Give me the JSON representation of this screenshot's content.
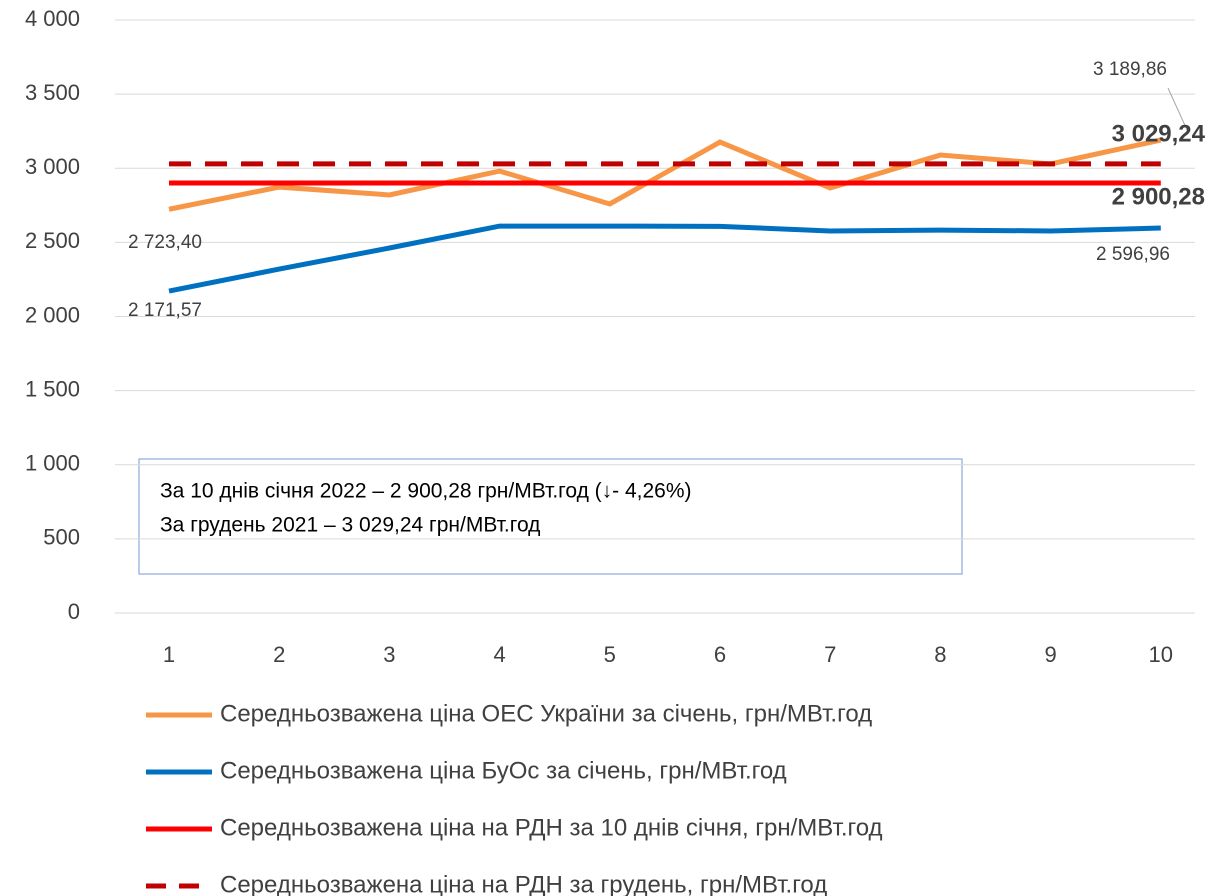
{
  "chart_data": {
    "type": "line",
    "categories": [
      "1",
      "2",
      "3",
      "4",
      "5",
      "6",
      "7",
      "8",
      "9",
      "10"
    ],
    "series": [
      {
        "name": "Середньозважена ціна ОЕС України за січень, грн/МВт.год",
        "color": "#f79646",
        "values": [
          2723.4,
          2873,
          2820,
          2981,
          2759,
          3177,
          2867,
          3089,
          3029,
          3189.86
        ],
        "value_labels": [
          "2 723,40",
          null,
          null,
          null,
          null,
          null,
          null,
          null,
          null,
          "3 189,86"
        ]
      },
      {
        "name": "Середньозважена ціна БуОс за січень, грн/МВт.год",
        "color": "#0070c0",
        "values": [
          2171.57,
          2320,
          2462,
          2610,
          2610,
          2608,
          2577,
          2583,
          2577,
          2596.96
        ],
        "value_labels": [
          "2 171,57",
          null,
          null,
          null,
          null,
          null,
          null,
          null,
          null,
          "2 596,96"
        ]
      },
      {
        "name": "Середньозважена ціна на РДН за 10 днів січня, грн/МВт.год",
        "color": "#ff0000",
        "values": [
          2900.28,
          2900.28,
          2900.28,
          2900.28,
          2900.28,
          2900.28,
          2900.28,
          2900.28,
          2900.28,
          2900.28
        ],
        "value_labels": [
          null,
          null,
          null,
          null,
          null,
          null,
          null,
          null,
          null,
          "2 900,28"
        ]
      },
      {
        "name": "Середньозважена ціна на РДН за грудень, грн/МВт.год",
        "color": "#c00000",
        "dashed": true,
        "values": [
          3029.24,
          3029.24,
          3029.24,
          3029.24,
          3029.24,
          3029.24,
          3029.24,
          3029.24,
          3029.24,
          3029.24
        ],
        "value_labels": [
          null,
          null,
          null,
          null,
          null,
          null,
          null,
          null,
          null,
          "3 029,24"
        ]
      }
    ],
    "ylim": [
      0,
      4000
    ],
    "yticks": [
      0,
      500,
      {
        "value": 1000,
        "label": "1 000"
      },
      {
        "value": 1500,
        "label": "1 500"
      },
      {
        "value": 2000,
        "label": "2 000"
      },
      {
        "value": 2500,
        "label": "2 500"
      },
      {
        "value": 3000,
        "label": "3 000"
      },
      {
        "value": 3500,
        "label": "3 500"
      },
      {
        "value": 4000,
        "label": "4 000"
      }
    ],
    "grid": true,
    "annotations": [
      "За 10 днів січня 2022 – 2 900,28 грн/МВт.год (↓- 4,26%)",
      "За грудень 2021 – 3 029,24 грн/МВт.год"
    ]
  }
}
